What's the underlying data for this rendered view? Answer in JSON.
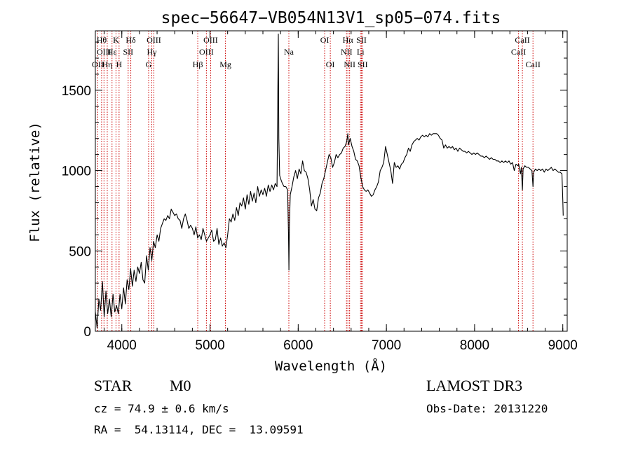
{
  "chart_data": {
    "type": "line",
    "title": "spec−56647−VB054N13V1_sp05−074.fits",
    "xlabel": "Wavelength (Å)",
    "ylabel": "Flux (relative)",
    "xlim": [
      3700,
      9050
    ],
    "ylim": [
      0,
      1870
    ],
    "x_ticks": [
      4000,
      5000,
      6000,
      7000,
      8000,
      9000
    ],
    "x_tick_labels": [
      "4000",
      "5000",
      "6000",
      "7000",
      "8000",
      "9000"
    ],
    "y_ticks": [
      0,
      500,
      1000,
      1500
    ],
    "y_tick_labels": [
      "0",
      "500",
      "1000",
      "1500"
    ],
    "grid": false,
    "series": [
      {
        "color": "#000000",
        "points": [
          [
            3700,
            120
          ],
          [
            3720,
            20
          ],
          [
            3740,
            200
          ],
          [
            3760,
            130
          ],
          [
            3780,
            310
          ],
          [
            3800,
            90
          ],
          [
            3820,
            250
          ],
          [
            3840,
            110
          ],
          [
            3860,
            200
          ],
          [
            3880,
            90
          ],
          [
            3900,
            230
          ],
          [
            3920,
            120
          ],
          [
            3940,
            160
          ],
          [
            3960,
            110
          ],
          [
            3980,
            230
          ],
          [
            4000,
            140
          ],
          [
            4020,
            270
          ],
          [
            4040,
            170
          ],
          [
            4060,
            320
          ],
          [
            4080,
            260
          ],
          [
            4100,
            390
          ],
          [
            4120,
            280
          ],
          [
            4140,
            380
          ],
          [
            4160,
            310
          ],
          [
            4180,
            400
          ],
          [
            4200,
            360
          ],
          [
            4220,
            430
          ],
          [
            4240,
            320
          ],
          [
            4260,
            300
          ],
          [
            4280,
            470
          ],
          [
            4300,
            380
          ],
          [
            4320,
            520
          ],
          [
            4340,
            440
          ],
          [
            4360,
            560
          ],
          [
            4380,
            520
          ],
          [
            4400,
            600
          ],
          [
            4420,
            560
          ],
          [
            4440,
            640
          ],
          [
            4460,
            670
          ],
          [
            4480,
            700
          ],
          [
            4500,
            690
          ],
          [
            4520,
            720
          ],
          [
            4540,
            700
          ],
          [
            4560,
            760
          ],
          [
            4580,
            740
          ],
          [
            4600,
            720
          ],
          [
            4620,
            730
          ],
          [
            4640,
            700
          ],
          [
            4660,
            690
          ],
          [
            4680,
            640
          ],
          [
            4700,
            700
          ],
          [
            4720,
            730
          ],
          [
            4740,
            690
          ],
          [
            4760,
            640
          ],
          [
            4780,
            660
          ],
          [
            4800,
            640
          ],
          [
            4820,
            600
          ],
          [
            4840,
            650
          ],
          [
            4860,
            580
          ],
          [
            4880,
            600
          ],
          [
            4900,
            570
          ],
          [
            4920,
            640
          ],
          [
            4940,
            600
          ],
          [
            4960,
            560
          ],
          [
            4980,
            580
          ],
          [
            5000,
            600
          ],
          [
            5020,
            630
          ],
          [
            5040,
            560
          ],
          [
            5060,
            570
          ],
          [
            5080,
            640
          ],
          [
            5100,
            540
          ],
          [
            5120,
            580
          ],
          [
            5140,
            530
          ],
          [
            5160,
            550
          ],
          [
            5180,
            520
          ],
          [
            5200,
            600
          ],
          [
            5220,
            700
          ],
          [
            5240,
            680
          ],
          [
            5260,
            730
          ],
          [
            5280,
            690
          ],
          [
            5300,
            770
          ],
          [
            5320,
            720
          ],
          [
            5340,
            800
          ],
          [
            5360,
            780
          ],
          [
            5380,
            830
          ],
          [
            5400,
            760
          ],
          [
            5420,
            850
          ],
          [
            5440,
            790
          ],
          [
            5460,
            870
          ],
          [
            5480,
            810
          ],
          [
            5500,
            860
          ],
          [
            5520,
            800
          ],
          [
            5540,
            900
          ],
          [
            5560,
            840
          ],
          [
            5580,
            880
          ],
          [
            5600,
            850
          ],
          [
            5620,
            890
          ],
          [
            5640,
            840
          ],
          [
            5660,
            910
          ],
          [
            5680,
            870
          ],
          [
            5700,
            910
          ],
          [
            5720,
            880
          ],
          [
            5740,
            920
          ],
          [
            5760,
            900
          ],
          [
            5775,
            1850
          ],
          [
            5780,
            1200
          ],
          [
            5790,
            970
          ],
          [
            5800,
            950
          ],
          [
            5820,
            920
          ],
          [
            5840,
            900
          ],
          [
            5860,
            900
          ],
          [
            5880,
            880
          ],
          [
            5890,
            600
          ],
          [
            5895,
            380
          ],
          [
            5900,
            650
          ],
          [
            5910,
            850
          ],
          [
            5930,
            900
          ],
          [
            5950,
            960
          ],
          [
            5970,
            1000
          ],
          [
            5990,
            950
          ],
          [
            6010,
            1010
          ],
          [
            6030,
            980
          ],
          [
            6050,
            1060
          ],
          [
            6070,
            1000
          ],
          [
            6090,
            990
          ],
          [
            6110,
            950
          ],
          [
            6130,
            880
          ],
          [
            6150,
            780
          ],
          [
            6170,
            820
          ],
          [
            6190,
            760
          ],
          [
            6210,
            750
          ],
          [
            6230,
            830
          ],
          [
            6250,
            860
          ],
          [
            6270,
            920
          ],
          [
            6290,
            950
          ],
          [
            6310,
            1000
          ],
          [
            6330,
            1050
          ],
          [
            6350,
            1100
          ],
          [
            6370,
            1080
          ],
          [
            6390,
            1020
          ],
          [
            6410,
            1050
          ],
          [
            6430,
            1100
          ],
          [
            6450,
            1080
          ],
          [
            6470,
            1100
          ],
          [
            6490,
            1110
          ],
          [
            6510,
            1140
          ],
          [
            6530,
            1150
          ],
          [
            6550,
            1180
          ],
          [
            6563,
            1230
          ],
          [
            6570,
            1160
          ],
          [
            6590,
            1200
          ],
          [
            6610,
            1150
          ],
          [
            6630,
            1120
          ],
          [
            6650,
            1070
          ],
          [
            6670,
            1060
          ],
          [
            6690,
            1030
          ],
          [
            6710,
            960
          ],
          [
            6730,
            900
          ],
          [
            6750,
            880
          ],
          [
            6770,
            870
          ],
          [
            6790,
            880
          ],
          [
            6810,
            860
          ],
          [
            6830,
            840
          ],
          [
            6850,
            850
          ],
          [
            6870,
            880
          ],
          [
            6890,
            900
          ],
          [
            6910,
            930
          ],
          [
            6930,
            1000
          ],
          [
            6950,
            1020
          ],
          [
            6970,
            1050
          ],
          [
            6990,
            1150
          ],
          [
            7010,
            1100
          ],
          [
            7030,
            1050
          ],
          [
            7050,
            1000
          ],
          [
            7070,
            920
          ],
          [
            7090,
            1050
          ],
          [
            7110,
            1020
          ],
          [
            7130,
            1030
          ],
          [
            7150,
            1010
          ],
          [
            7170,
            1040
          ],
          [
            7190,
            1050
          ],
          [
            7210,
            1080
          ],
          [
            7230,
            1100
          ],
          [
            7250,
            1140
          ],
          [
            7270,
            1120
          ],
          [
            7290,
            1160
          ],
          [
            7310,
            1180
          ],
          [
            7330,
            1190
          ],
          [
            7350,
            1200
          ],
          [
            7370,
            1190
          ],
          [
            7390,
            1210
          ],
          [
            7410,
            1220
          ],
          [
            7430,
            1210
          ],
          [
            7450,
            1220
          ],
          [
            7470,
            1210
          ],
          [
            7490,
            1230
          ],
          [
            7510,
            1220
          ],
          [
            7530,
            1230
          ],
          [
            7550,
            1230
          ],
          [
            7570,
            1230
          ],
          [
            7590,
            1220
          ],
          [
            7610,
            1200
          ],
          [
            7630,
            1190
          ],
          [
            7650,
            1140
          ],
          [
            7670,
            1160
          ],
          [
            7690,
            1140
          ],
          [
            7710,
            1150
          ],
          [
            7730,
            1140
          ],
          [
            7750,
            1150
          ],
          [
            7770,
            1130
          ],
          [
            7790,
            1140
          ],
          [
            7810,
            1120
          ],
          [
            7830,
            1140
          ],
          [
            7850,
            1130
          ],
          [
            7870,
            1120
          ],
          [
            7890,
            1120
          ],
          [
            7910,
            1110
          ],
          [
            7930,
            1120
          ],
          [
            7950,
            1110
          ],
          [
            7970,
            1100
          ],
          [
            7990,
            1110
          ],
          [
            8010,
            1100
          ],
          [
            8030,
            1110
          ],
          [
            8050,
            1100
          ],
          [
            8070,
            1090
          ],
          [
            8090,
            1090
          ],
          [
            8110,
            1080
          ],
          [
            8130,
            1090
          ],
          [
            8150,
            1080
          ],
          [
            8170,
            1070
          ],
          [
            8190,
            1080
          ],
          [
            8210,
            1070
          ],
          [
            8230,
            1070
          ],
          [
            8250,
            1060
          ],
          [
            8270,
            1060
          ],
          [
            8290,
            1050
          ],
          [
            8310,
            1060
          ],
          [
            8330,
            1050
          ],
          [
            8350,
            1060
          ],
          [
            8370,
            1050
          ],
          [
            8390,
            1060
          ],
          [
            8410,
            1040
          ],
          [
            8430,
            1050
          ],
          [
            8450,
            1000
          ],
          [
            8470,
            1040
          ],
          [
            8490,
            1030
          ],
          [
            8500,
            1040
          ],
          [
            8520,
            980
          ],
          [
            8530,
            1020
          ],
          [
            8542,
            880
          ],
          [
            8550,
            1010
          ],
          [
            8570,
            1030
          ],
          [
            8590,
            1020
          ],
          [
            8610,
            1020
          ],
          [
            8630,
            1010
          ],
          [
            8650,
            1000
          ],
          [
            8662,
            900
          ],
          [
            8670,
            990
          ],
          [
            8690,
            1010
          ],
          [
            8710,
            1000
          ],
          [
            8730,
            1010
          ],
          [
            8750,
            1000
          ],
          [
            8770,
            1010
          ],
          [
            8790,
            990
          ],
          [
            8810,
            1010
          ],
          [
            8830,
            1000
          ],
          [
            8850,
            1010
          ],
          [
            8870,
            1020
          ],
          [
            8890,
            1000
          ],
          [
            8910,
            1010
          ],
          [
            8930,
            1000
          ],
          [
            8950,
            990
          ],
          [
            8970,
            990
          ],
          [
            8990,
            980
          ],
          [
            9000,
            820
          ],
          [
            9005,
            720
          ]
        ]
      }
    ],
    "line_labels": [
      {
        "wavelength": 3727,
        "row": 2,
        "text": "OII"
      },
      {
        "wavelength": 3771,
        "row": 0,
        "text": "Hθ"
      },
      {
        "wavelength": 3798,
        "row": 1,
        "text": "OIII"
      },
      {
        "wavelength": 3835,
        "row": 2,
        "text": "Hη"
      },
      {
        "wavelength": 3889,
        "row": 1,
        "text": "Hε"
      },
      {
        "wavelength": 3934,
        "row": 0,
        "text": "K"
      },
      {
        "wavelength": 3969,
        "row": 2,
        "text": "H"
      },
      {
        "wavelength": 4072,
        "row": 1,
        "text": "SII"
      },
      {
        "wavelength": 4102,
        "row": 0,
        "text": "Hδ"
      },
      {
        "wavelength": 4304,
        "row": 2,
        "text": "G"
      },
      {
        "wavelength": 4340,
        "row": 1,
        "text": "Hγ"
      },
      {
        "wavelength": 4363,
        "row": 0,
        "text": "OIII"
      },
      {
        "wavelength": 4861,
        "row": 2,
        "text": "Hβ"
      },
      {
        "wavelength": 4959,
        "row": 1,
        "text": "OIII"
      },
      {
        "wavelength": 5007,
        "row": 0,
        "text": "OIII"
      },
      {
        "wavelength": 5175,
        "row": 2,
        "text": "Mg"
      },
      {
        "wavelength": 5894,
        "row": 1,
        "text": "Na"
      },
      {
        "wavelength": 6300,
        "row": 0,
        "text": "OI"
      },
      {
        "wavelength": 6364,
        "row": 2,
        "text": "OI"
      },
      {
        "wavelength": 6548,
        "row": 1,
        "text": "NII"
      },
      {
        "wavelength": 6563,
        "row": 0,
        "text": "Hα"
      },
      {
        "wavelength": 6583,
        "row": 2,
        "text": "NII"
      },
      {
        "wavelength": 6707,
        "row": 1,
        "text": "Li"
      },
      {
        "wavelength": 6717,
        "row": 0,
        "text": "SII"
      },
      {
        "wavelength": 6731,
        "row": 2,
        "text": "SII"
      },
      {
        "wavelength": 8498,
        "row": 1,
        "text": "CaII"
      },
      {
        "wavelength": 8542,
        "row": 0,
        "text": "CaII"
      },
      {
        "wavelength": 8662,
        "row": 2,
        "text": "CaII"
      }
    ]
  },
  "footer": {
    "class_label": "STAR",
    "subclass": "M0",
    "survey": "LAMOST DR3",
    "redshift": "cz = 74.9 ± 0.6 km/s",
    "obs_date": "Obs-Date: 20131220",
    "coords": "RA =  54.13114, DEC =  13.09591"
  },
  "colors": {
    "spectrum": "#000000",
    "line_markers": "#cc0000",
    "axes": "#000000"
  }
}
